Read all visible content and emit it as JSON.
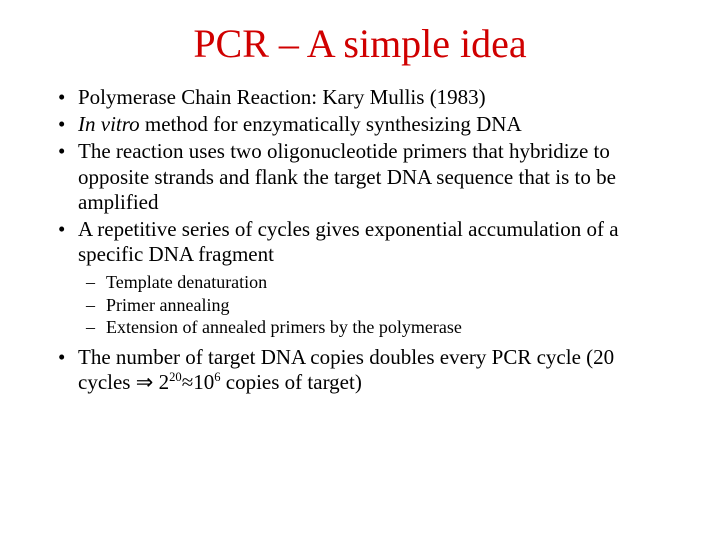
{
  "title_text": "PCR – A simple idea",
  "title_color": "#d00000",
  "body_color": "#000000",
  "background_color": "#ffffff",
  "font_family": "Comic Sans MS",
  "title_fontsize": 40,
  "bullet_fontsize": 21,
  "subbullet_fontsize": 18,
  "bullets": {
    "b0": "Polymerase Chain Reaction: Kary Mullis (1983)",
    "b1_italic": "In vitro",
    "b1_rest": " method for enzymatically synthesizing DNA",
    "b2": "The reaction uses two oligonucleotide primers that hybridize to opposite strands and flank the target DNA sequence that is to be amplified",
    "b3": "A repetitive series of cycles gives exponential accumulation of a specific DNA fragment",
    "b4_pre": "The number of target DNA copies doubles every PCR cycle (20 cycles ",
    "b4_arrow": "⇒",
    "b4_base1": " 2",
    "b4_sup1": "20",
    "b4_approx": "≈10",
    "b4_sup2": "6",
    "b4_post": " copies of target)"
  },
  "sub": {
    "s0": "Template denaturation",
    "s1": "Primer annealing",
    "s2": "Extension of annealed primers by the polymerase"
  }
}
